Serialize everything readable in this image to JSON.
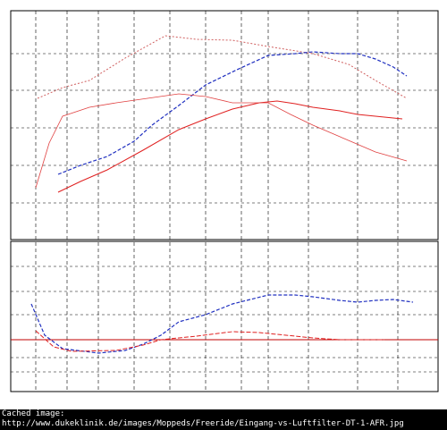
{
  "caption": {
    "label": "Cached image:",
    "url": "http://www.dukeklinik.de/images/Moppeds/Freeride/Eingang-vs-Luftfilter-DT-1-AFR.jpg"
  }
}
